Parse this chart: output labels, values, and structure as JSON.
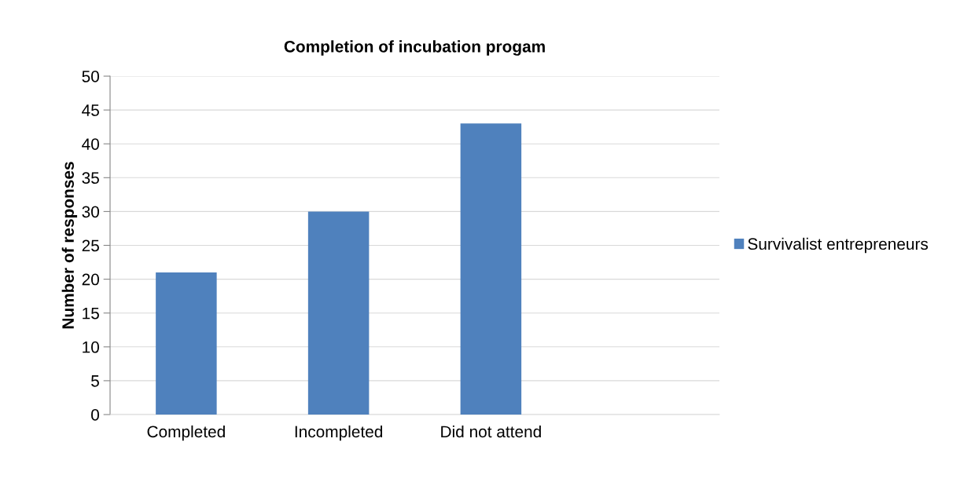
{
  "chart_data": {
    "type": "bar",
    "title": "Completion of incubation progam",
    "ylabel": "Number of responses",
    "categories": [
      "Completed",
      "Incompleted",
      "Did not attend",
      null
    ],
    "series": [
      {
        "name": "Survivalist entrepreneurs",
        "color": "#4f81bd",
        "values": [
          21,
          30,
          43,
          null
        ]
      }
    ],
    "ylim": [
      0,
      50
    ],
    "yticks": [
      0,
      5,
      10,
      15,
      20,
      25,
      30,
      35,
      40,
      45,
      50
    ],
    "grid": "y",
    "legend": "right"
  }
}
